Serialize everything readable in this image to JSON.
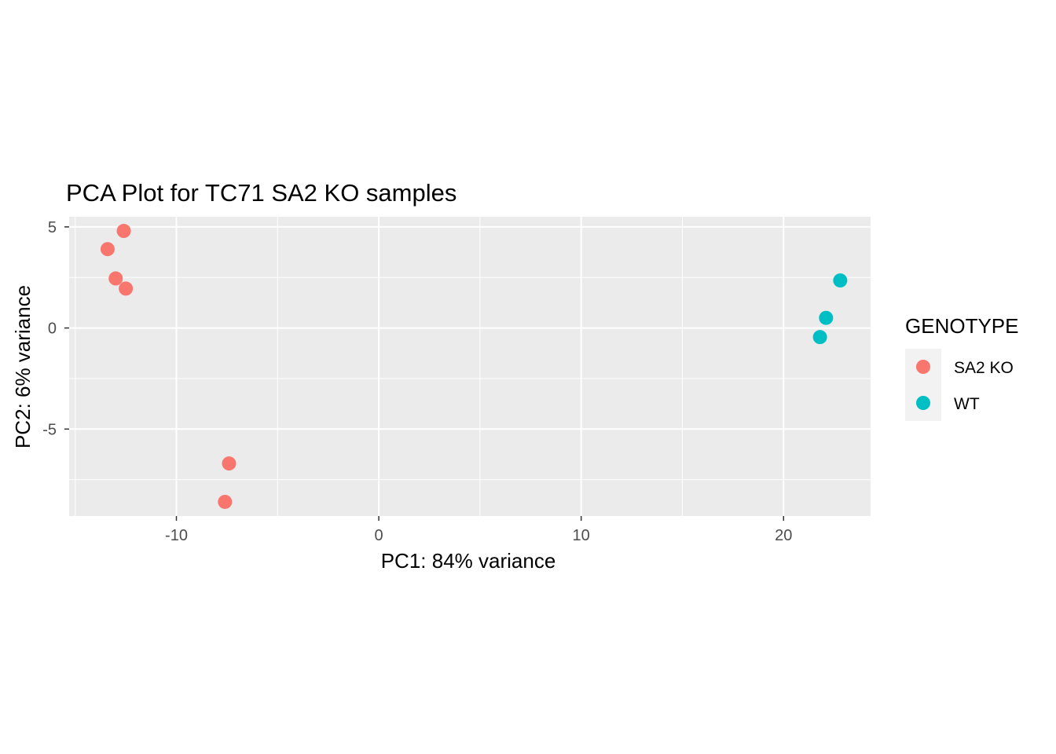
{
  "chart_data": {
    "type": "scatter",
    "title": "PCA Plot for TC71 SA2 KO samples",
    "xlabel": "PC1: 84% variance",
    "ylabel": "PC2: 6% variance",
    "xlim": [
      -15.3,
      24.3
    ],
    "ylim": [
      -9.3,
      5.5
    ],
    "x_ticks": [
      -10,
      0,
      10,
      20
    ],
    "x_tick_labels": [
      "-10",
      "0",
      "10",
      "20"
    ],
    "y_ticks": [
      -5,
      0,
      5
    ],
    "y_tick_labels": [
      "-5",
      "0",
      "5"
    ],
    "grid": true,
    "legend": {
      "title": "GENOTYPE",
      "placement": "right",
      "entries": [
        {
          "label": "SA2 KO",
          "color": "#F8766D"
        },
        {
          "label": "WT",
          "color": "#00BFC4"
        }
      ]
    },
    "series": [
      {
        "name": "SA2 KO",
        "color": "#F8766D",
        "points": [
          {
            "x": -12.6,
            "y": 4.8
          },
          {
            "x": -13.4,
            "y": 3.9
          },
          {
            "x": -13.0,
            "y": 2.45
          },
          {
            "x": -12.5,
            "y": 1.95
          },
          {
            "x": -7.4,
            "y": -6.7
          },
          {
            "x": -7.6,
            "y": -8.6
          }
        ]
      },
      {
        "name": "WT",
        "color": "#00BFC4",
        "points": [
          {
            "x": 22.8,
            "y": 2.35
          },
          {
            "x": 22.1,
            "y": 0.5
          },
          {
            "x": 21.8,
            "y": -0.45
          }
        ]
      }
    ]
  }
}
